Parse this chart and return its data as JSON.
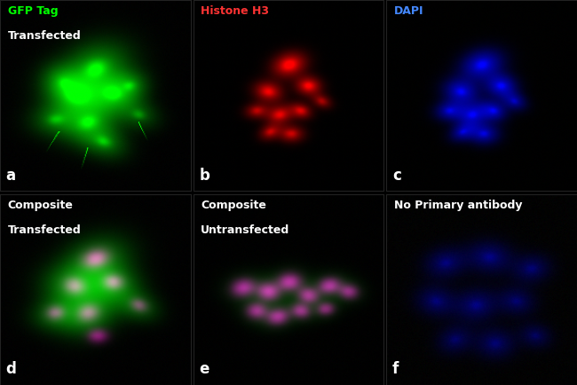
{
  "panels": [
    {
      "label": "a",
      "title_line1": "GFP Tag",
      "title_line2": "Transfected",
      "title_color1": "#00ff00",
      "title_color2": "#ffffff",
      "bg_color": "#000000",
      "channel": "green",
      "row": 0,
      "col": 0
    },
    {
      "label": "b",
      "title_line1": "Histone H3",
      "title_line2": "",
      "title_color1": "#ff3333",
      "title_color2": "#ffffff",
      "bg_color": "#000000",
      "channel": "red",
      "row": 0,
      "col": 1
    },
    {
      "label": "c",
      "title_line1": "DAPI",
      "title_line2": "",
      "title_color1": "#4488ff",
      "title_color2": "#ffffff",
      "bg_color": "#000000",
      "channel": "blue",
      "row": 0,
      "col": 2
    },
    {
      "label": "d",
      "title_line1": "Composite",
      "title_line2": "Transfected",
      "title_color1": "#ffffff",
      "title_color2": "#ffffff",
      "bg_color": "#000000",
      "channel": "composite_transfected",
      "row": 1,
      "col": 0
    },
    {
      "label": "e",
      "title_line1": "Composite",
      "title_line2": "Untransfected",
      "title_color1": "#ffffff",
      "title_color2": "#ffffff",
      "bg_color": "#000000",
      "channel": "composite_untransfected",
      "row": 1,
      "col": 1
    },
    {
      "label": "f",
      "title_line1": "No Primary antibody",
      "title_line2": "",
      "title_color1": "#ffffff",
      "title_color2": "#ffffff",
      "bg_color": "#000000",
      "channel": "no_primary",
      "row": 1,
      "col": 2
    }
  ],
  "grid_color": "#222222",
  "label_color": "#ffffff",
  "label_fontsize": 11,
  "title_fontsize": 9
}
